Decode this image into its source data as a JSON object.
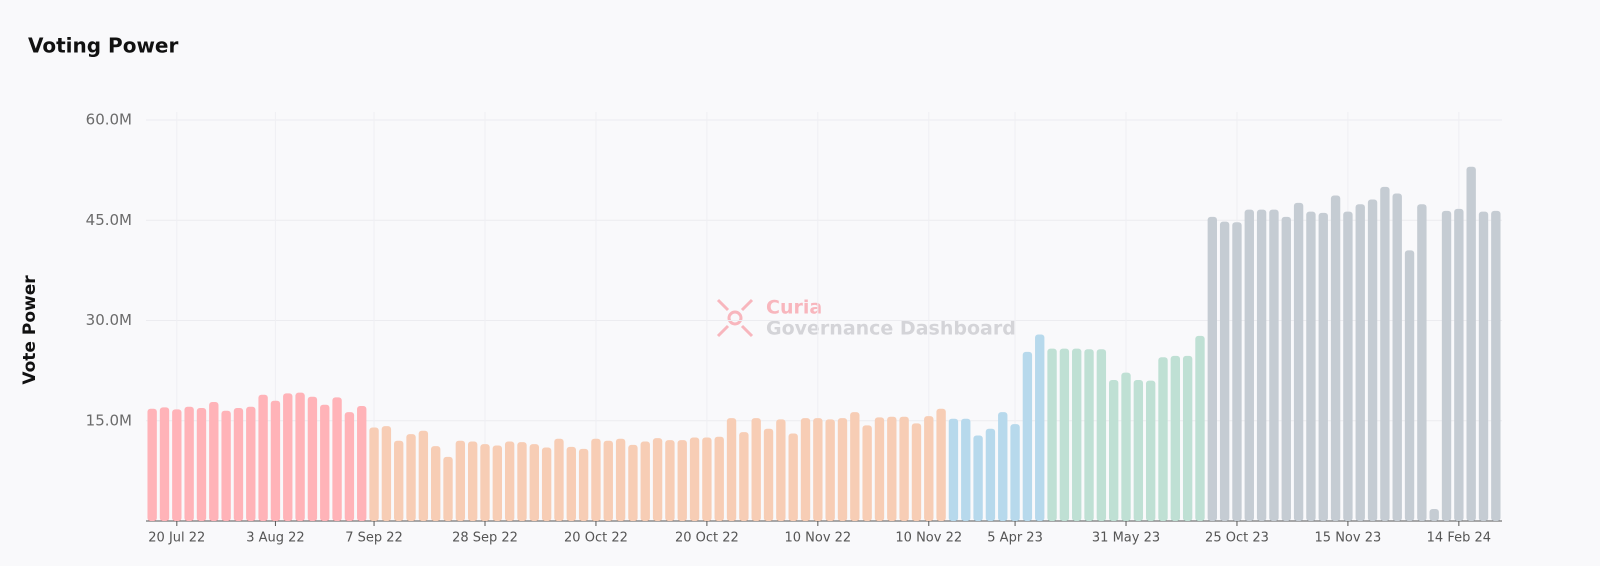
{
  "chart_data": {
    "type": "bar",
    "title": "Voting Power",
    "y_label": "Vote Power",
    "watermark": [
      "Curia",
      "Governance Dashboard"
    ],
    "categories": [
      null,
      null,
      "20 Jul 22",
      null,
      null,
      null,
      null,
      null,
      null,
      null,
      "3 Aug 22",
      null,
      null,
      null,
      null,
      null,
      null,
      null,
      "7 Sep 22",
      null,
      null,
      null,
      null,
      null,
      null,
      null,
      null,
      "28 Sep 22",
      null,
      null,
      null,
      null,
      null,
      null,
      null,
      null,
      "20 Oct 22",
      null,
      null,
      null,
      null,
      null,
      null,
      null,
      null,
      "20 Oct 22",
      null,
      null,
      null,
      null,
      null,
      null,
      null,
      null,
      "10 Nov 22",
      null,
      null,
      null,
      null,
      null,
      null,
      null,
      null,
      "10 Nov 22",
      null,
      null,
      null,
      null,
      null,
      null,
      "5 Apr 23",
      null,
      null,
      null,
      null,
      null,
      null,
      null,
      null,
      "31 May 23",
      null,
      null,
      null,
      null,
      null,
      null,
      null,
      null,
      "25 Oct 23",
      null,
      null,
      null,
      null,
      null,
      null,
      null,
      null,
      "15 Nov 23",
      null,
      null,
      null,
      null,
      null,
      null,
      null,
      null,
      "14 Feb 24",
      null,
      null,
      null
    ],
    "values": [
      16.8,
      17.0,
      16.7,
      17.1,
      16.9,
      17.8,
      16.5,
      16.9,
      17.1,
      18.9,
      18.0,
      19.1,
      19.2,
      18.6,
      17.4,
      18.5,
      16.3,
      17.2,
      14.0,
      14.2,
      12.0,
      13.0,
      13.5,
      11.2,
      9.6,
      12.0,
      11.9,
      11.5,
      11.3,
      11.9,
      11.8,
      11.5,
      11.0,
      12.3,
      11.1,
      10.8,
      12.3,
      12.0,
      12.3,
      11.4,
      11.9,
      12.4,
      12.1,
      12.1,
      12.5,
      12.5,
      12.6,
      15.4,
      13.3,
      15.4,
      13.8,
      15.2,
      13.1,
      15.4,
      15.4,
      15.2,
      15.4,
      16.3,
      14.3,
      15.5,
      15.6,
      15.6,
      14.6,
      15.7,
      16.8,
      15.3,
      15.3,
      12.8,
      13.8,
      16.3,
      14.5,
      25.3,
      27.9,
      25.8,
      25.8,
      25.8,
      25.7,
      25.7,
      21.1,
      22.2,
      21.1,
      21.0,
      24.5,
      24.7,
      24.7,
      27.7,
      45.5,
      44.8,
      44.7,
      46.6,
      46.6,
      46.6,
      45.5,
      47.6,
      46.3,
      46.1,
      48.7,
      46.3,
      47.4,
      48.1,
      50.0,
      49.0,
      40.5,
      47.4,
      1.8,
      46.4,
      46.7,
      53.0,
      46.3,
      46.4
    ],
    "colors": [
      "#ffb3b8",
      "#ffb3b8",
      "#ffb3b8",
      "#ffb3b8",
      "#ffb3b8",
      "#ffb3b8",
      "#ffb3b8",
      "#ffb3b8",
      "#ffb3b8",
      "#ffb3b8",
      "#ffb3b8",
      "#ffb3b8",
      "#ffb3b8",
      "#ffb3b8",
      "#ffb3b8",
      "#ffb3b8",
      "#ffb3b8",
      "#ffb3b8",
      "#f7cdb5",
      "#f7cdb5",
      "#f7cdb5",
      "#f7cdb5",
      "#f7cdb5",
      "#f7cdb5",
      "#f7cdb5",
      "#f7cdb5",
      "#f7cdb5",
      "#f7cdb5",
      "#f7cdb5",
      "#f7cdb5",
      "#f7cdb5",
      "#f7cdb5",
      "#f7cdb5",
      "#f7cdb5",
      "#f7cdb5",
      "#f7cdb5",
      "#f7cdb5",
      "#f7cdb5",
      "#f7cdb5",
      "#f7cdb5",
      "#f7cdb5",
      "#f7cdb5",
      "#f7cdb5",
      "#f7cdb5",
      "#f7cdb5",
      "#f7cdb5",
      "#f7cdb5",
      "#f7cdb5",
      "#f7cdb5",
      "#f7cdb5",
      "#f7cdb5",
      "#f7cdb5",
      "#f7cdb5",
      "#f7cdb5",
      "#f7cdb5",
      "#f7cdb5",
      "#f7cdb5",
      "#f7cdb5",
      "#f7cdb5",
      "#f7cdb5",
      "#f7cdb5",
      "#f7cdb5",
      "#f7cdb5",
      "#f7cdb5",
      "#f7cdb5",
      "#b7d9ec",
      "#b7d9ec",
      "#b7d9ec",
      "#b7d9ec",
      "#b7d9ec",
      "#b7d9ec",
      "#b7d9ec",
      "#b7d9ec",
      "#bfe0d4",
      "#bfe0d4",
      "#bfe0d4",
      "#bfe0d4",
      "#bfe0d4",
      "#bfe0d4",
      "#bfe0d4",
      "#bfe0d4",
      "#bfe0d4",
      "#bfe0d4",
      "#bfe0d4",
      "#bfe0d4",
      "#bfe0d4",
      "#c5ccd3",
      "#c5ccd3",
      "#c5ccd3",
      "#c5ccd3",
      "#c5ccd3",
      "#c5ccd3",
      "#c5ccd3",
      "#c5ccd3",
      "#c5ccd3",
      "#c5ccd3",
      "#c5ccd3",
      "#c5ccd3",
      "#c5ccd3",
      "#c5ccd3",
      "#c5ccd3",
      "#c5ccd3",
      "#c5ccd3",
      "#c5ccd3",
      "#c5ccd3",
      "#c5ccd3",
      "#c5ccd3",
      "#c5ccd3",
      "#c5ccd3",
      "#c5ccd3"
    ],
    "ylim": [
      0,
      61.2
    ],
    "yticks": [
      {
        "value": 15,
        "label": "15.0M"
      },
      {
        "value": 30,
        "label": "30.0M"
      },
      {
        "value": 45,
        "label": "45.0M"
      },
      {
        "value": 60,
        "label": "60.0M"
      }
    ],
    "grid": true
  }
}
